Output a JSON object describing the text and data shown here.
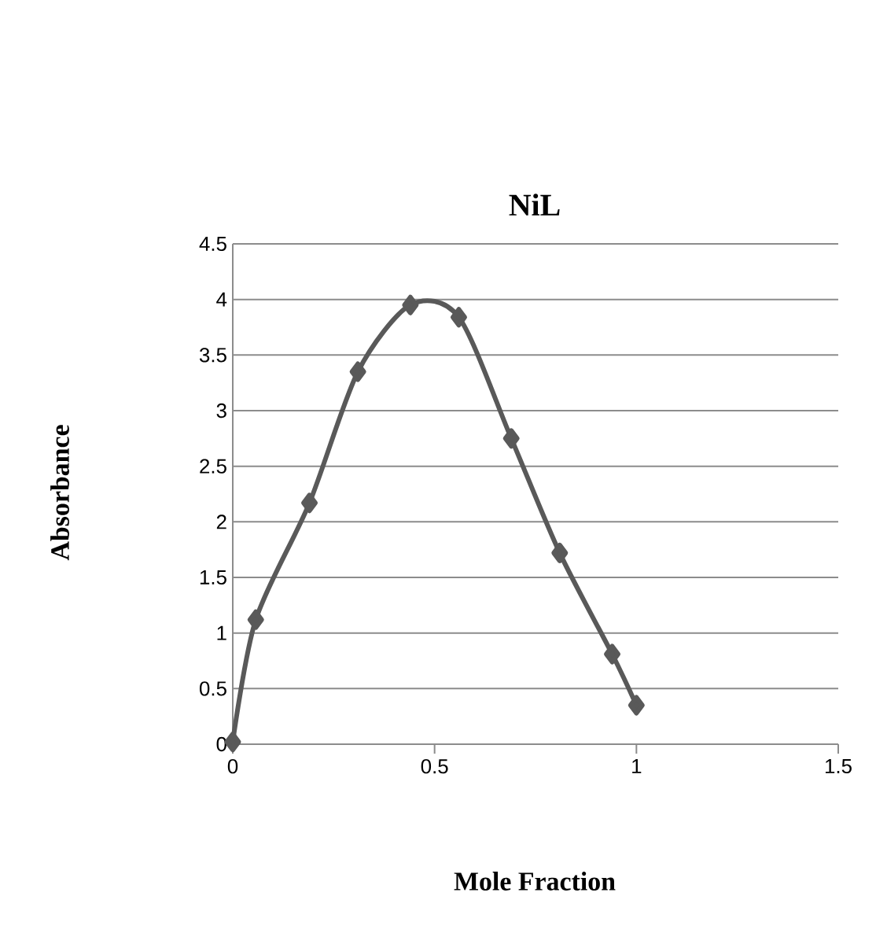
{
  "chart_data": {
    "type": "line",
    "title": "NiL",
    "xlabel": "Mole Fraction",
    "ylabel": "Absorbance",
    "series": [
      {
        "color": "#595959",
        "x": [
          0,
          0.057,
          0.19,
          0.31,
          0.44,
          0.56,
          0.69,
          0.81,
          0.94,
          1.0
        ],
        "values": [
          0.02,
          1.12,
          2.17,
          3.35,
          3.95,
          3.84,
          2.75,
          1.72,
          0.81,
          0.35
        ]
      }
    ],
    "xlim": [
      0,
      1.5
    ],
    "xticks": [
      0,
      0.5,
      1,
      1.5
    ],
    "ylim": [
      0,
      4.5
    ],
    "yticks": [
      0,
      0.5,
      1,
      1.5,
      2,
      2.5,
      3,
      3.5,
      4,
      4.5
    ],
    "grid": "y",
    "marker": "diamond",
    "line_style": "solid"
  }
}
